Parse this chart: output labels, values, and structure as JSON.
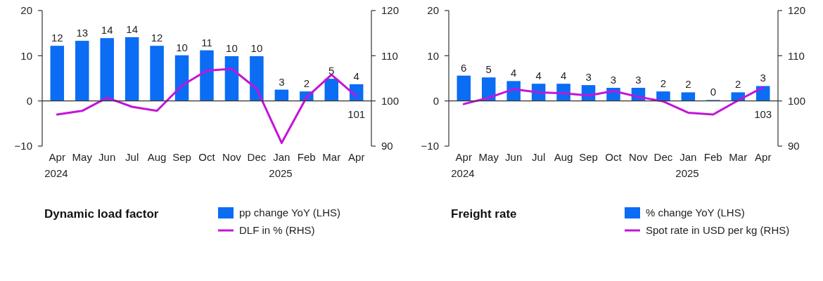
{
  "chart_data": [
    {
      "type": "bar",
      "categories": [
        "Apr\n2024",
        "May",
        "Jun",
        "Jul",
        "Aug",
        "Sep",
        "Oct",
        "Nov",
        "Dec",
        "Jan\n2025",
        "Feb",
        "Mar",
        "Apr"
      ],
      "ylim": [
        -10,
        20
      ],
      "yticks": [
        -10,
        0,
        10,
        20
      ],
      "y2lim": [
        90,
        120
      ],
      "y2ticks": [
        90,
        100,
        110,
        120
      ],
      "series": [
        {
          "type": "bar",
          "color": "#0b6cf4",
          "values": [
            12.2,
            13.3,
            13.9,
            14.1,
            12.2,
            10.1,
            11.2,
            9.9,
            9.9,
            2.5,
            2.1,
            4.9,
            3.7
          ],
          "value_labels": [
            "12",
            "13",
            "14",
            "14",
            "12",
            "10",
            "11",
            "10",
            "10",
            "3",
            "2",
            "5",
            "4"
          ]
        },
        {
          "type": "line",
          "axis": "y2",
          "color": "#c414d8",
          "values": [
            97.0,
            97.8,
            100.7,
            98.7,
            97.8,
            103.4,
            106.7,
            107.1,
            102.7,
            90.7,
            100.8,
            105.8,
            101
          ],
          "value_labels": [
            null,
            null,
            null,
            null,
            null,
            null,
            null,
            null,
            null,
            null,
            null,
            null,
            "101"
          ]
        }
      ]
    },
    {
      "type": "bar",
      "categories": [
        "Apr\n2024",
        "May",
        "Jun",
        "Jul",
        "Aug",
        "Sep",
        "Oct",
        "Nov",
        "Dec",
        "Jan\n2025",
        "Feb",
        "Mar",
        "Apr"
      ],
      "ylim": [
        -10,
        20
      ],
      "yticks": [
        -10,
        0,
        10,
        20
      ],
      "y2lim": [
        90,
        120
      ],
      "y2ticks": [
        90,
        100,
        110,
        120
      ],
      "series": [
        {
          "type": "bar",
          "color": "#0b6cf4",
          "values": [
            5.6,
            5.2,
            4.4,
            3.8,
            3.8,
            3.5,
            2.9,
            2.9,
            2.1,
            1.9,
            0.2,
            1.9,
            3.3
          ],
          "value_labels": [
            "6",
            "5",
            "4",
            "4",
            "4",
            "3",
            "3",
            "3",
            "2",
            "2",
            "0",
            "2",
            "3"
          ]
        },
        {
          "type": "line",
          "axis": "y2",
          "color": "#c414d8",
          "values": [
            99.3,
            100.7,
            102.6,
            101.9,
            101.7,
            101.2,
            102.2,
            100.9,
            99.9,
            97.4,
            97.0,
            100.1,
            103
          ],
          "value_labels": [
            null,
            null,
            null,
            null,
            null,
            null,
            null,
            null,
            null,
            null,
            null,
            null,
            "103"
          ]
        }
      ]
    },
    {
      "type": "other",
      "title": "Dynamic load factor",
      "legend": "top",
      "series": [
        {
          "type": "bar",
          "name": "pp change YoY (LHS)",
          "color": "#0b6cf4"
        },
        {
          "type": "line",
          "name": "DLF in % (RHS)",
          "color": "#c414d8"
        }
      ]
    },
    {
      "type": "other",
      "title": "Freight rate",
      "legend": "top",
      "series": [
        {
          "type": "bar",
          "name": "% change YoY (LHS)",
          "color": "#0b6cf4"
        },
        {
          "type": "line",
          "name": "Spot rate in USD per kg (RHS)",
          "color": "#c414d8"
        }
      ]
    }
  ]
}
